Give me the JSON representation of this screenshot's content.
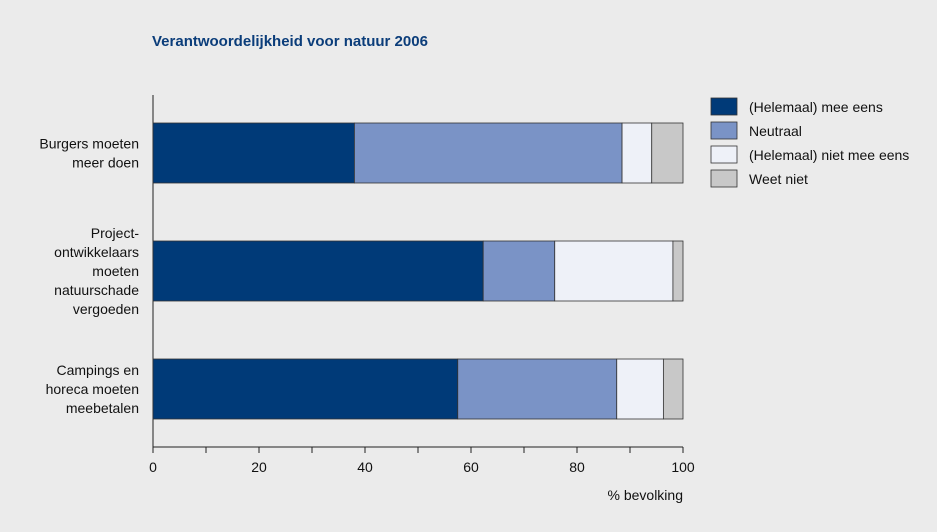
{
  "chart_data": {
    "type": "bar",
    "orientation": "horizontal",
    "stacked": true,
    "title": "Verantwoordelijkheid voor natuur 2006",
    "xlabel": "% bevolking",
    "ylabel": "",
    "xlim": [
      0,
      100
    ],
    "xticks": [
      "0",
      "20",
      "40",
      "60",
      "80",
      "100"
    ],
    "grid": false,
    "legend_position": "right-top",
    "categories": [
      [
        "Burgers moeten",
        "meer doen"
      ],
      [
        "Project-",
        "ontwikkelaars",
        "moeten",
        "natuurschade",
        "vergoeden"
      ],
      [
        "Campings en",
        "horeca moeten",
        "meebetalen"
      ]
    ],
    "series": [
      {
        "name": "(Helemaal) mee eens",
        "color": "#003a78",
        "values": [
          38,
          62.3,
          57.5
        ]
      },
      {
        "name": "Neutraal",
        "color": "#7a93c6",
        "values": [
          50.5,
          13.5,
          30
        ]
      },
      {
        "name": "(Helemaal) niet mee eens",
        "color": "#eef1f8",
        "values": [
          5.6,
          22.3,
          8.8
        ]
      },
      {
        "name": "Weet niet",
        "color": "#c8c8c8",
        "values": [
          5.9,
          1.9,
          3.7
        ]
      }
    ]
  }
}
